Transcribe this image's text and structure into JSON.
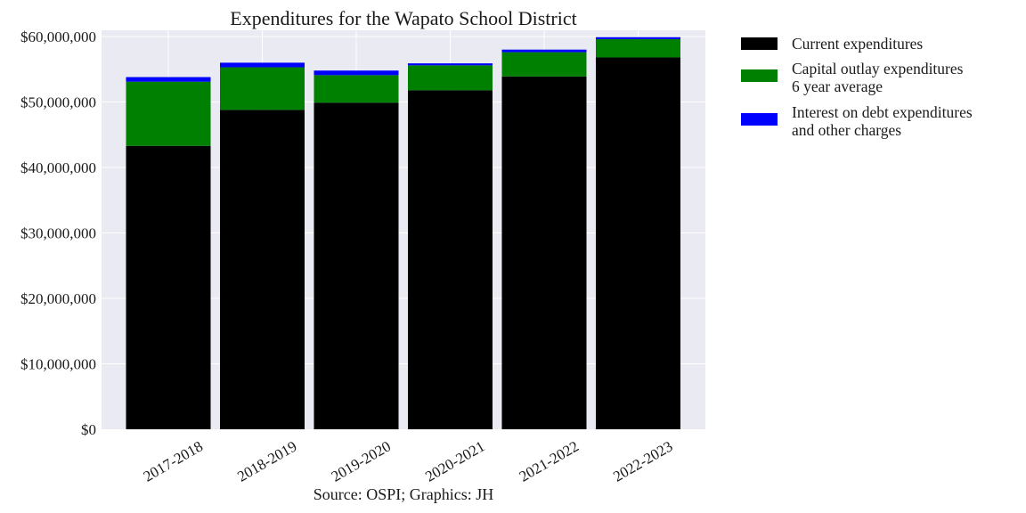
{
  "chart_data": {
    "type": "bar",
    "stacked": true,
    "title": "Expenditures for the Wapato School District",
    "caption": "Source: OSPI; Graphics: JH",
    "xlabel": "",
    "ylabel": "",
    "categories": [
      "2017-2018",
      "2018-2019",
      "2019-2020",
      "2020-2021",
      "2021-2022",
      "2022-2023"
    ],
    "series": [
      {
        "name": "Current expenditures",
        "color": "#000000",
        "values": [
          43300000,
          48800000,
          49900000,
          51800000,
          53900000,
          56800000
        ]
      },
      {
        "name": "Capital outlay expenditures\n6 year average",
        "color": "#008000",
        "values": [
          9800000,
          6500000,
          4200000,
          3800000,
          3700000,
          2800000
        ]
      },
      {
        "name": "Interest on debt expenditures\nand other charges",
        "color": "#0000ff",
        "values": [
          700000,
          700000,
          700000,
          300000,
          400000,
          300000
        ]
      }
    ],
    "ylim": [
      0,
      60000000
    ],
    "yticks": [
      0,
      10000000,
      20000000,
      30000000,
      40000000,
      50000000,
      60000000
    ],
    "ytick_labels": [
      "$0",
      "$10,000,000",
      "$20,000,000",
      "$30,000,000",
      "$40,000,000",
      "$50,000,000",
      "$60,000,000"
    ],
    "grid": true,
    "legend_position": "outside-right",
    "plot_background": "#eaeaf2"
  }
}
